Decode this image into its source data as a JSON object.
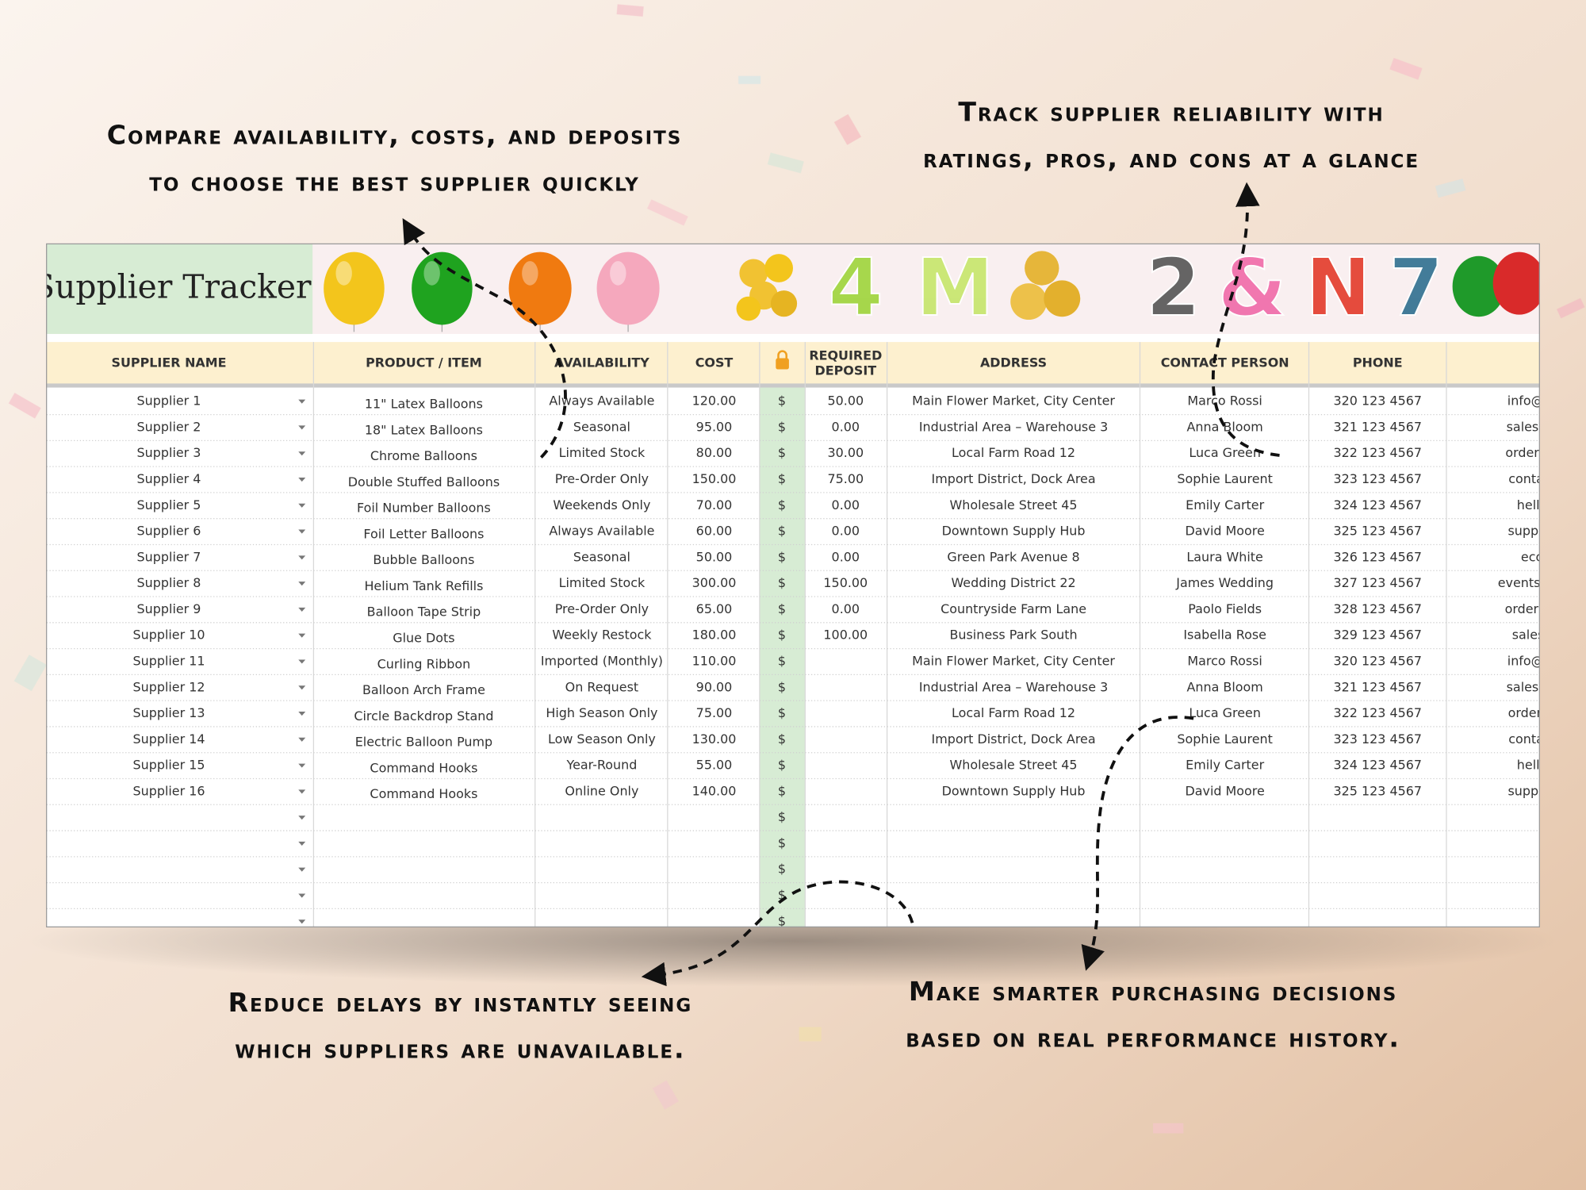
{
  "annotations": {
    "top_left": [
      "Compare availability, costs, and deposits",
      "to choose the best supplier quickly"
    ],
    "top_right": [
      "Track supplier reliability with",
      "ratings, pros, and cons at a glance"
    ],
    "bottom_left": [
      "Reduce delays by instantly seeing",
      "which suppliers are unavailable."
    ],
    "bottom_right": [
      "Make smarter purchasing decisions",
      "based on real performance history."
    ]
  },
  "spreadsheet": {
    "title": "Supplier Tracker",
    "decor_letters": [
      "4",
      "M",
      "2",
      "&",
      "N",
      "7"
    ],
    "columns": {
      "name": "SUPPLIER NAME",
      "product": "PRODUCT / ITEM",
      "availability": "AVAILABILITY",
      "cost": "COST",
      "deposit": [
        "REQUIRED",
        "DEPOSIT"
      ],
      "address": "ADDRESS",
      "contact": "CONTACT PERSON",
      "phone": "PHONE"
    },
    "currency_symbol": "$",
    "rows": [
      {
        "name": "Supplier 1",
        "product": "11\" Latex Balloons",
        "availability": "Always Available",
        "cost": "120.00",
        "deposit": "50.00",
        "address": "Main Flower Market, City Center",
        "contact": "Marco Rossi",
        "phone": "320 123 4567",
        "email": "info@loca"
      },
      {
        "name": "Supplier 2",
        "product": "18\" Latex Balloons",
        "availability": "Seasonal",
        "cost": "95.00",
        "deposit": "0.00",
        "address": "Industrial Area – Warehouse 3",
        "contact": "Anna Bloom",
        "phone": "321 123 4567",
        "email": "sales@blo"
      },
      {
        "name": "Supplier 3",
        "product": "Chrome Balloons",
        "availability": "Limited Stock",
        "cost": "80.00",
        "deposit": "30.00",
        "address": "Local Farm Road 12",
        "contact": "Luca Green",
        "phone": "322 123 4567",
        "email": "orders@gr"
      },
      {
        "name": "Supplier 4",
        "product": "Double Stuffed Balloons",
        "availability": "Pre-Order Only",
        "cost": "150.00",
        "deposit": "75.00",
        "address": "Import District, Dock Area",
        "contact": "Sophie Laurent",
        "phone": "323 123 4567",
        "email": "contact@"
      },
      {
        "name": "Supplier 5",
        "product": "Foil Number Balloons",
        "availability": "Weekends Only",
        "cost": "70.00",
        "deposit": "0.00",
        "address": "Wholesale Street 45",
        "contact": "Emily Carter",
        "phone": "324 123 4567",
        "email": "hello@"
      },
      {
        "name": "Supplier 6",
        "product": "Foil Letter Balloons",
        "availability": "Always Available",
        "cost": "60.00",
        "deposit": "0.00",
        "address": "Downtown Supply Hub",
        "contact": "David Moore",
        "phone": "325 123 4567",
        "email": "support@"
      },
      {
        "name": "Supplier 7",
        "product": "Bubble Balloons",
        "availability": "Seasonal",
        "cost": "50.00",
        "deposit": "0.00",
        "address": "Green Park Avenue 8",
        "contact": "Laura White",
        "phone": "326 123 4567",
        "email": "eco@"
      },
      {
        "name": "Supplier 8",
        "product": "Helium Tank Refills",
        "availability": "Limited Stock",
        "cost": "300.00",
        "deposit": "150.00",
        "address": "Wedding District 22",
        "contact": "James Wedding",
        "phone": "327 123 4567",
        "email": "events@wed"
      },
      {
        "name": "Supplier 9",
        "product": "Balloon Tape Strip",
        "availability": "Pre-Order Only",
        "cost": "65.00",
        "deposit": "0.00",
        "address": "Countryside Farm Lane",
        "contact": "Paolo Fields",
        "phone": "328 123 4567",
        "email": "orders@se"
      },
      {
        "name": "Supplier 10",
        "product": "Glue Dots",
        "availability": "Weekly Restock",
        "cost": "180.00",
        "deposit": "100.00",
        "address": "Business Park South",
        "contact": "Isabella Rose",
        "phone": "329 123 4567",
        "email": "sales@p"
      },
      {
        "name": "Supplier 11",
        "product": "Curling Ribbon",
        "availability": "Imported (Monthly)",
        "cost": "110.00",
        "address": "Main Flower Market, City Center",
        "contact": "Marco Rossi",
        "phone": "320 123 4567",
        "email": "info@loca"
      },
      {
        "name": "Supplier 12",
        "product": "Balloon Arch Frame",
        "availability": "On Request",
        "cost": "90.00",
        "address": "Industrial Area – Warehouse 3",
        "contact": "Anna Bloom",
        "phone": "321 123 4567",
        "email": "sales@blo"
      },
      {
        "name": "Supplier 13",
        "product": "Circle Backdrop Stand",
        "availability": "High Season Only",
        "cost": "75.00",
        "address": "Local Farm Road 12",
        "contact": "Luca Green",
        "phone": "322 123 4567",
        "email": "orders@g"
      },
      {
        "name": "Supplier 14",
        "product": "Electric Balloon Pump",
        "availability": "Low Season Only",
        "cost": "130.00",
        "address": "Import District, Dock Area",
        "contact": "Sophie Laurent",
        "phone": "323 123 4567",
        "email": "contact@"
      },
      {
        "name": "Supplier 15",
        "product": "Command Hooks",
        "availability": "Year-Round",
        "cost": "55.00",
        "address": "Wholesale Street 45",
        "contact": "Emily Carter",
        "phone": "324 123 4567",
        "email": "hello@"
      },
      {
        "name": "Supplier 16",
        "product": "Command Hooks",
        "availability": "Online Only",
        "cost": "140.00",
        "address": "Downtown Supply Hub",
        "contact": "David Moore",
        "phone": "325 123 4567",
        "email": "support@"
      }
    ]
  }
}
